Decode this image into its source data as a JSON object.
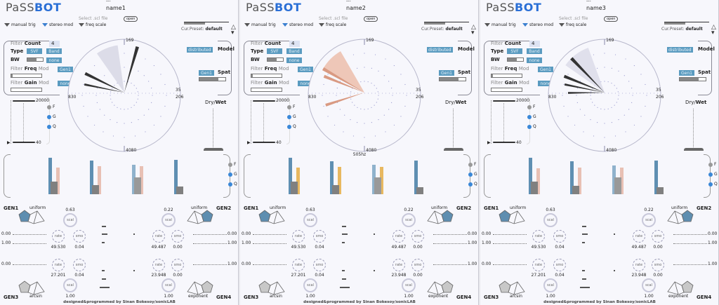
{
  "app_title_a": "PaSS",
  "app_title_b": "BOT",
  "colors": {
    "accent": "#2a6fd6",
    "button": "#5a9bc0",
    "freq_bar": "#5f8fb2",
    "gain_bar_pink": "#e8c0b4",
    "gain_bar_orange": "#e8b860",
    "q_bar": "#888888"
  },
  "labels": {
    "dashes": "---",
    "manual_trig": "manual trig",
    "stereo_mod": "stereo mod",
    "select_scl": "Select .scl file",
    "freq_scale": "freq scale",
    "open": "open",
    "cur_preset": "Cur.Preset:",
    "preset_value": "default",
    "filter": "Filter",
    "count": "Count",
    "count_value": "4",
    "type": "Type",
    "svf": "SVF",
    "band": "Band",
    "bw": "BW",
    "none": "none",
    "freq": "Freq",
    "gain": "Gain",
    "mod": "Mod",
    "gen1": "Gen1",
    "distributed": "distributed",
    "model": "Model",
    "spat": "Spat",
    "dry": "Dry/",
    "wet": "Wet",
    "range_max": "20000",
    "range_min": "40",
    "F": "F",
    "G": "G",
    "Q": "Q",
    "dial_top": "169",
    "dial_right": "35",
    "dial_right_low": "206",
    "dial_left": "830",
    "dial_bottom": "4080",
    "GEN1": "GEN1",
    "GEN2": "GEN2",
    "GEN3": "GEN3",
    "GEN4": "GEN4",
    "uniform": "uniform",
    "arcsin": "arcsin",
    "exponent": "exponent",
    "scal": "scal",
    "rate": "rate",
    "smo": "smo",
    "footer": "designed&programmed by Sinan Bokesoy/sonicLAB"
  },
  "panels": [
    {
      "name": "name1",
      "freq_readout": "",
      "bars": [
        {
          "F": 1.0,
          "G": 0.73,
          "Q": 0.35
        },
        {
          "F": 0.92,
          "G": 0.77,
          "Q": 0.25
        },
        {
          "F": 0.8,
          "G": 0.77,
          "Q": 0.46
        },
        {
          "F": 0.94,
          "G": 0,
          "Q": 0.21
        }
      ],
      "gen1": {
        "scal": "0.63",
        "rate": "49.530",
        "smo": "0.04",
        "min": "0.00",
        "max": "1.00"
      },
      "gen2": {
        "scal": "0.22",
        "rate": "49.487",
        "smo": "0.00",
        "min": "0.00",
        "max": "1.00"
      },
      "gen3": {
        "scal": "1.00",
        "rate": "27.201",
        "smo": "0.04",
        "min": "0.00"
      },
      "gen4": {
        "scal": "1.00",
        "rate": "23.948",
        "smo": "0.00",
        "max": "1.00"
      }
    },
    {
      "name": "name2",
      "freq_readout": "505hz",
      "bars": [
        {
          "F": 1.0,
          "G": 0.73,
          "Q": 0.35
        },
        {
          "F": 0.9,
          "G": 0.75,
          "Q": 0.25
        },
        {
          "F": 0.8,
          "G": 0.75,
          "Q": 0.47
        },
        {
          "F": 0.92,
          "G": 0,
          "Q": 0.2
        }
      ],
      "gen1": {
        "scal": "0.63",
        "rate": "49.530",
        "smo": "0.04",
        "min": "0.00",
        "max": "1.00"
      },
      "gen2": {
        "scal": "0.22",
        "rate": "49.487",
        "smo": "0.00",
        "min": "0.00",
        "max": "1.00"
      },
      "gen3": {
        "scal": "1.00",
        "rate": "27.201",
        "smo": "0.04",
        "min": "0.00"
      },
      "gen4": {
        "scal": "1.00",
        "rate": "23.948",
        "smo": "0.00",
        "max": "1.00"
      }
    },
    {
      "name": "name3",
      "freq_readout": "",
      "bars": [
        {
          "F": 1.0,
          "G": 0.72,
          "Q": 0.34
        },
        {
          "F": 0.9,
          "G": 0.74,
          "Q": 0.24
        },
        {
          "F": 0.79,
          "G": 0.74,
          "Q": 0.46
        },
        {
          "F": 0.92,
          "G": 0,
          "Q": 0.2
        }
      ],
      "gen1": {
        "scal": "0.63",
        "rate": "49.530",
        "smo": "0.04",
        "min": "0.00",
        "max": "1.00"
      },
      "gen2": {
        "scal": "0.22",
        "rate": "49.487",
        "smo": "0.00",
        "min": "0.00",
        "max": "1.00"
      },
      "gen3": {
        "scal": "1.00",
        "rate": "27.201",
        "smo": "0.04",
        "min": "0.00"
      },
      "gen4": {
        "scal": "1.00",
        "rate": "23.948",
        "smo": "0.00",
        "max": "1.00"
      }
    }
  ]
}
